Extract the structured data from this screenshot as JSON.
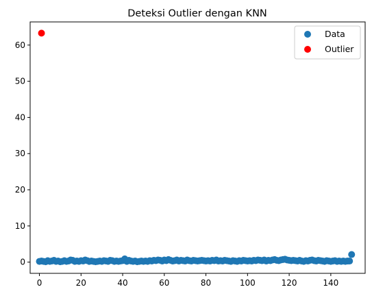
{
  "chart_data": {
    "type": "scatter",
    "title": "Deteksi Outlier dengan KNN",
    "xlabel": "",
    "ylabel": "",
    "xlim": [
      -4.45,
      156.5
    ],
    "ylim": [
      -3.1,
      66.4
    ],
    "x_ticks": [
      0,
      20,
      40,
      60,
      80,
      100,
      120,
      140
    ],
    "y_ticks": [
      0,
      10,
      20,
      30,
      40,
      50,
      60
    ],
    "grid": false,
    "legend_position": "top-right",
    "series": [
      {
        "name": "Data",
        "color": "#1f77b4",
        "x": [
          0,
          1,
          2,
          3,
          4,
          5,
          6,
          7,
          8,
          9,
          10,
          11,
          12,
          13,
          14,
          15,
          16,
          17,
          18,
          19,
          20,
          21,
          22,
          23,
          24,
          25,
          26,
          27,
          28,
          29,
          30,
          31,
          32,
          33,
          34,
          35,
          36,
          37,
          38,
          39,
          40,
          41,
          42,
          43,
          44,
          45,
          46,
          47,
          48,
          49,
          50,
          51,
          52,
          53,
          54,
          55,
          56,
          57,
          58,
          59,
          60,
          61,
          62,
          63,
          64,
          65,
          66,
          67,
          68,
          69,
          70,
          71,
          72,
          73,
          74,
          75,
          76,
          77,
          78,
          79,
          80,
          81,
          82,
          83,
          84,
          85,
          86,
          87,
          88,
          89,
          90,
          91,
          92,
          93,
          94,
          95,
          96,
          97,
          98,
          99,
          100,
          101,
          102,
          103,
          104,
          105,
          106,
          107,
          108,
          109,
          110,
          111,
          112,
          113,
          114,
          115,
          116,
          117,
          118,
          119,
          120,
          121,
          122,
          123,
          124,
          125,
          126,
          127,
          128,
          129,
          130,
          131,
          132,
          133,
          134,
          135,
          136,
          137,
          138,
          139,
          140,
          141,
          142,
          143,
          144,
          145,
          146,
          147,
          148,
          149,
          150
        ],
        "y": [
          0.2,
          0.3,
          0.2,
          0.1,
          0.4,
          0.2,
          0.3,
          0.5,
          0.2,
          0.3,
          0.1,
          0.2,
          0.4,
          0.2,
          0.3,
          0.6,
          0.5,
          0.2,
          0.3,
          0.2,
          0.4,
          0.3,
          0.6,
          0.4,
          0.2,
          0.3,
          0.2,
          0.1,
          0.2,
          0.3,
          0.2,
          0.4,
          0.3,
          0.2,
          0.5,
          0.4,
          0.2,
          0.3,
          0.2,
          0.3,
          0.4,
          0.9,
          0.2,
          0.5,
          0.3,
          0.2,
          0.3,
          0.1,
          0.2,
          0.3,
          0.2,
          0.3,
          0.2,
          0.4,
          0.3,
          0.5,
          0.4,
          0.6,
          0.5,
          0.3,
          0.6,
          0.4,
          0.7,
          0.5,
          0.3,
          0.4,
          0.6,
          0.3,
          0.5,
          0.4,
          0.3,
          0.6,
          0.4,
          0.3,
          0.5,
          0.4,
          0.3,
          0.4,
          0.5,
          0.4,
          0.3,
          0.4,
          0.3,
          0.5,
          0.4,
          0.6,
          0.3,
          0.4,
          0.3,
          0.5,
          0.4,
          0.3,
          0.2,
          0.4,
          0.3,
          0.2,
          0.4,
          0.3,
          0.5,
          0.4,
          0.3,
          0.4,
          0.3,
          0.5,
          0.4,
          0.6,
          0.5,
          0.4,
          0.6,
          0.3,
          0.5,
          0.4,
          0.6,
          0.7,
          0.5,
          0.4,
          0.6,
          0.7,
          0.8,
          0.6,
          0.5,
          0.4,
          0.5,
          0.4,
          0.3,
          0.5,
          0.3,
          0.2,
          0.4,
          0.3,
          0.5,
          0.6,
          0.4,
          0.3,
          0.5,
          0.4,
          0.3,
          0.2,
          0.4,
          0.3,
          0.2,
          0.3,
          0.4,
          0.2,
          0.3,
          0.2,
          0.3,
          0.2,
          0.3,
          0.3,
          2.1
        ]
      },
      {
        "name": "Outlier",
        "color": "#ff0000",
        "x": [
          1
        ],
        "y": [
          63.3
        ]
      }
    ]
  }
}
